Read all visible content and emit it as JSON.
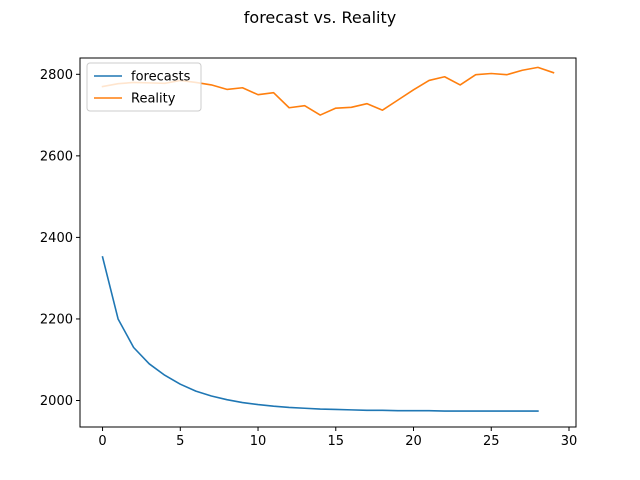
{
  "chart_data": {
    "type": "line",
    "title": "forecast vs. Reality",
    "xlabel": "",
    "ylabel": "",
    "xlim": [
      -1.45,
      30.45
    ],
    "ylim": [
      1935,
      2840
    ],
    "xticks": [
      0,
      5,
      10,
      15,
      20,
      25,
      30
    ],
    "yticks": [
      2000,
      2200,
      2400,
      2600,
      2800
    ],
    "grid": false,
    "legend_position": "top-left",
    "series": [
      {
        "name": "forecasts",
        "color": "#1f77b4",
        "x": [
          0,
          1,
          2,
          3,
          4,
          5,
          6,
          7,
          8,
          9,
          10,
          11,
          12,
          13,
          14,
          15,
          16,
          17,
          18,
          19,
          20,
          21,
          22,
          23,
          24,
          25,
          26,
          27,
          28
        ],
        "values": [
          2352,
          2200,
          2130,
          2090,
          2062,
          2040,
          2023,
          2011,
          2002,
          1995,
          1990,
          1986,
          1983,
          1981,
          1979,
          1978,
          1977,
          1976,
          1976,
          1975,
          1975,
          1975,
          1974,
          1974,
          1974,
          1974,
          1974,
          1974,
          1974
        ]
      },
      {
        "name": "Reality",
        "color": "#ff7f0e",
        "x": [
          0,
          1,
          2,
          3,
          4,
          5,
          6,
          7,
          8,
          9,
          10,
          11,
          12,
          13,
          14,
          15,
          16,
          17,
          18,
          19,
          20,
          21,
          22,
          23,
          24,
          25,
          26,
          27,
          28,
          29
        ],
        "values": [
          2770,
          2777,
          2780,
          2779,
          2778,
          2785,
          2780,
          2774,
          2763,
          2767,
          2750,
          2755,
          2718,
          2723,
          2700,
          2717,
          2719,
          2728,
          2712,
          2737,
          2762,
          2785,
          2794,
          2774,
          2799,
          2802,
          2799,
          2810,
          2817,
          2804
        ]
      }
    ]
  }
}
